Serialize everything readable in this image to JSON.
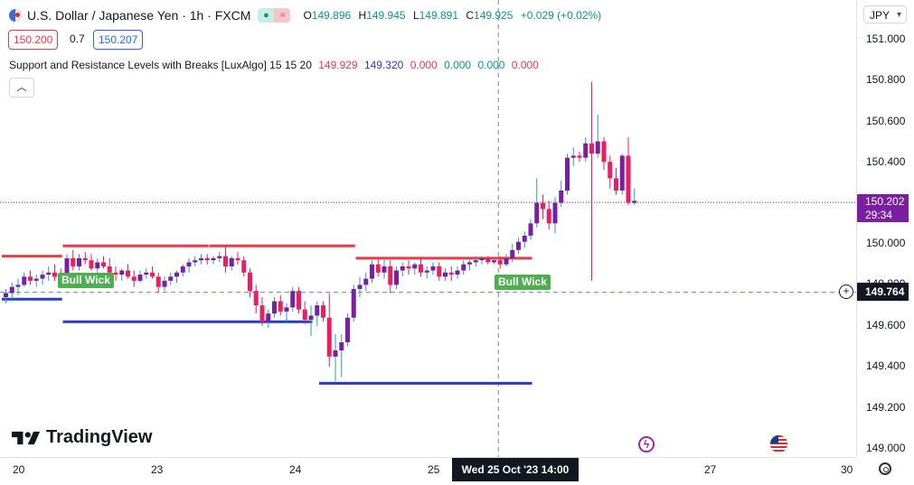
{
  "header": {
    "symbol": "U.S. Dollar / Japanese Yen · 1h · FXCM",
    "ohlc": {
      "o_label": "O",
      "o": "149.896",
      "h_label": "H",
      "h": "149.945",
      "l_label": "L",
      "l": "149.891",
      "c_label": "C",
      "c": "149.925",
      "change": "+0.029 (+0.02%)"
    },
    "sell_price": "150.200",
    "spread": "0.7",
    "buy_price": "150.207"
  },
  "indicator": {
    "name": "Support and Resistance Levels with Breaks [LuxAlgo] 15 15 20",
    "values": [
      "149.929",
      "149.320",
      "0.000",
      "0.000",
      "0.000",
      "0.000"
    ]
  },
  "currency": "JPY",
  "price_axis": {
    "ticks": [
      "151.000",
      "150.800",
      "150.600",
      "150.400",
      "150.000",
      "149.800",
      "149.600",
      "149.400",
      "149.200",
      "149.000"
    ]
  },
  "last_price": {
    "price": "150.202",
    "countdown": "29:34"
  },
  "cursor_price": "149.764",
  "time_axis": {
    "ticks": [
      "20",
      "23",
      "24",
      "25",
      "27",
      "30"
    ],
    "cursor_label": "Wed 25 Oct '23   14:00"
  },
  "labels": {
    "bull_wick_1": "Bull Wick",
    "bull_wick_2": "Bull Wick"
  },
  "brand": "TradingView",
  "colors": {
    "up": "#7b1fa2",
    "down": "#e91e63",
    "resistance": "#f23645",
    "support": "#2a3ac8",
    "bull_wick": "#4caf50"
  },
  "chart_data": {
    "type": "candlestick",
    "ylim": [
      149.0,
      151.0
    ],
    "x_labels": [
      "20",
      "23",
      "24",
      "25",
      "27",
      "30"
    ],
    "candles": [
      [
        149.74,
        149.78,
        149.71,
        149.76
      ],
      [
        149.76,
        149.81,
        149.73,
        149.79
      ],
      [
        149.79,
        149.83,
        149.75,
        149.8
      ],
      [
        149.8,
        149.86,
        149.79,
        149.84
      ],
      [
        149.84,
        149.87,
        149.8,
        149.82
      ],
      [
        149.82,
        149.85,
        149.79,
        149.83
      ],
      [
        149.83,
        149.87,
        149.8,
        149.85
      ],
      [
        149.85,
        149.89,
        149.82,
        149.86
      ],
      [
        149.86,
        149.9,
        149.82,
        149.84
      ],
      [
        149.84,
        149.88,
        149.81,
        149.83
      ],
      [
        149.83,
        149.95,
        149.82,
        149.93
      ],
      [
        149.93,
        149.97,
        149.87,
        149.89
      ],
      [
        149.89,
        149.95,
        149.87,
        149.93
      ],
      [
        149.93,
        149.96,
        149.9,
        149.92
      ],
      [
        149.92,
        149.95,
        149.87,
        149.88
      ],
      [
        149.88,
        149.93,
        149.86,
        149.91
      ],
      [
        149.91,
        149.94,
        149.88,
        149.89
      ],
      [
        149.89,
        149.93,
        149.85,
        149.86
      ],
      [
        149.86,
        149.89,
        149.82,
        149.85
      ],
      [
        149.85,
        149.88,
        149.82,
        149.87
      ],
      [
        149.87,
        149.9,
        149.83,
        149.84
      ],
      [
        149.84,
        149.87,
        149.79,
        149.82
      ],
      [
        149.82,
        149.87,
        149.81,
        149.85
      ],
      [
        149.85,
        149.88,
        149.83,
        149.86
      ],
      [
        149.86,
        149.89,
        149.83,
        149.84
      ],
      [
        149.84,
        149.86,
        149.76,
        149.79
      ],
      [
        149.79,
        149.84,
        149.77,
        149.82
      ],
      [
        149.82,
        149.86,
        149.8,
        149.84
      ],
      [
        149.84,
        149.87,
        149.81,
        149.86
      ],
      [
        149.86,
        149.9,
        149.84,
        149.89
      ],
      [
        149.89,
        149.93,
        149.86,
        149.91
      ],
      [
        149.91,
        149.94,
        149.89,
        149.92
      ],
      [
        149.92,
        149.95,
        149.9,
        149.93
      ],
      [
        149.93,
        149.95,
        149.9,
        149.92
      ],
      [
        149.92,
        149.94,
        149.9,
        149.93
      ],
      [
        149.93,
        149.96,
        149.91,
        149.94
      ],
      [
        149.94,
        149.99,
        149.86,
        149.89
      ],
      [
        149.89,
        149.94,
        149.87,
        149.93
      ],
      [
        149.93,
        149.96,
        149.9,
        149.92
      ],
      [
        149.92,
        149.94,
        149.84,
        149.86
      ],
      [
        149.86,
        149.88,
        149.74,
        149.77
      ],
      [
        149.77,
        149.8,
        149.66,
        149.7
      ],
      [
        149.7,
        149.74,
        149.6,
        149.62
      ],
      [
        149.62,
        149.68,
        149.59,
        149.66
      ],
      [
        149.66,
        149.74,
        149.64,
        149.72
      ],
      [
        149.72,
        149.75,
        149.65,
        149.67
      ],
      [
        149.67,
        149.71,
        149.62,
        149.69
      ],
      [
        149.69,
        149.79,
        149.67,
        149.77
      ],
      [
        149.77,
        149.79,
        149.66,
        149.68
      ],
      [
        149.68,
        149.72,
        149.61,
        149.63
      ],
      [
        149.63,
        149.7,
        149.55,
        149.65
      ],
      [
        149.65,
        149.72,
        149.6,
        149.7
      ],
      [
        149.7,
        149.72,
        149.62,
        149.64
      ],
      [
        149.64,
        149.76,
        149.4,
        149.45
      ],
      [
        149.45,
        149.56,
        149.33,
        149.48
      ],
      [
        149.48,
        149.56,
        149.35,
        149.52
      ],
      [
        149.52,
        149.66,
        149.5,
        149.64
      ],
      [
        149.64,
        149.8,
        149.62,
        149.78
      ],
      [
        149.78,
        149.84,
        149.74,
        149.8
      ],
      [
        149.8,
        149.86,
        149.77,
        149.83
      ],
      [
        149.83,
        149.92,
        149.81,
        149.9
      ],
      [
        149.9,
        149.93,
        149.84,
        149.86
      ],
      [
        149.86,
        149.92,
        149.83,
        149.89
      ],
      [
        149.89,
        149.92,
        149.76,
        149.8
      ],
      [
        149.8,
        149.89,
        149.78,
        149.87
      ],
      [
        149.87,
        149.91,
        149.84,
        149.89
      ],
      [
        149.89,
        149.92,
        149.85,
        149.88
      ],
      [
        149.88,
        149.91,
        149.85,
        149.9
      ],
      [
        149.9,
        149.93,
        149.84,
        149.86
      ],
      [
        149.86,
        149.89,
        149.83,
        149.87
      ],
      [
        149.87,
        149.91,
        149.85,
        149.89
      ],
      [
        149.89,
        149.91,
        149.82,
        149.84
      ],
      [
        149.84,
        149.88,
        149.82,
        149.86
      ],
      [
        149.86,
        149.89,
        149.82,
        149.85
      ],
      [
        149.85,
        149.89,
        149.83,
        149.87
      ],
      [
        149.87,
        149.92,
        149.85,
        149.9
      ],
      [
        149.9,
        149.93,
        149.87,
        149.91
      ],
      [
        149.91,
        149.94,
        149.89,
        149.92
      ],
      [
        149.92,
        149.94,
        149.9,
        149.93
      ],
      [
        149.93,
        149.94,
        149.9,
        149.91
      ],
      [
        149.91,
        149.93,
        149.9,
        149.92
      ],
      [
        149.92,
        149.94,
        149.88,
        149.9
      ],
      [
        149.9,
        149.95,
        149.89,
        149.93
      ],
      [
        149.93,
        150.0,
        149.91,
        149.97
      ],
      [
        149.97,
        150.03,
        149.95,
        150.01
      ],
      [
        150.01,
        150.06,
        149.98,
        150.04
      ],
      [
        150.04,
        150.12,
        150.02,
        150.1
      ],
      [
        150.1,
        150.32,
        150.08,
        150.2
      ],
      [
        150.2,
        150.24,
        150.12,
        150.17
      ],
      [
        150.17,
        150.21,
        150.07,
        150.1
      ],
      [
        150.1,
        150.23,
        150.05,
        150.2
      ],
      [
        150.2,
        150.31,
        150.18,
        150.26
      ],
      [
        150.26,
        150.44,
        150.24,
        150.42
      ],
      [
        150.42,
        150.47,
        150.38,
        150.43
      ],
      [
        150.43,
        150.45,
        150.4,
        150.42
      ],
      [
        150.42,
        150.52,
        150.4,
        150.49
      ],
      [
        150.49,
        150.79,
        149.82,
        150.44
      ],
      [
        150.44,
        150.63,
        150.42,
        150.5
      ],
      [
        150.5,
        150.52,
        150.36,
        150.4
      ],
      [
        150.4,
        150.43,
        150.27,
        150.32
      ],
      [
        150.32,
        150.37,
        150.24,
        150.26
      ],
      [
        150.26,
        150.44,
        150.24,
        150.43
      ],
      [
        150.43,
        150.52,
        150.19,
        150.2
      ],
      [
        150.2,
        150.27,
        150.19,
        150.21
      ]
    ],
    "resistance_levels": [
      {
        "price": 149.94,
        "from_index": 0,
        "to_index": 9
      },
      {
        "price": 149.99,
        "from_index": 10,
        "to_index": 33
      },
      {
        "price": 149.99,
        "from_index": 34,
        "to_index": 57
      },
      {
        "price": 149.93,
        "from_index": 58,
        "to_index": 86
      }
    ],
    "support_levels": [
      {
        "price": 149.73,
        "from_index": 0,
        "to_index": 9
      },
      {
        "price": 149.62,
        "from_index": 10,
        "to_index": 50
      },
      {
        "price": 149.32,
        "from_index": 52,
        "to_index": 86
      }
    ],
    "bull_wick_indices": [
      10,
      84
    ],
    "crosshair": {
      "price": 149.764,
      "index": 81
    }
  }
}
